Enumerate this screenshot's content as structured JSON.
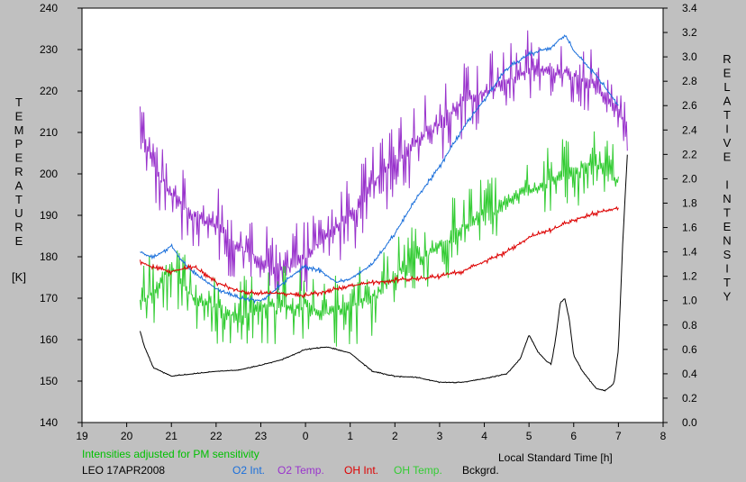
{
  "chart_data": {
    "type": "line",
    "x_ticks": [
      "19",
      "20",
      "21",
      "22",
      "23",
      "0",
      "1",
      "2",
      "3",
      "4",
      "5",
      "6",
      "7",
      "8"
    ],
    "x_range_hours": [
      19,
      32
    ],
    "x_label": "Local Standard Time [h]",
    "y_left": {
      "label_letters": [
        "T",
        "E",
        "M",
        "P",
        "E",
        "R",
        "A",
        "T",
        "U",
        "R",
        "E"
      ],
      "unit": "[K]",
      "ticks": [
        140,
        150,
        160,
        170,
        180,
        190,
        200,
        210,
        220,
        230,
        240
      ],
      "range": [
        140,
        240
      ]
    },
    "y_right": {
      "label_letters": [
        "R",
        "E",
        "L",
        "A",
        "T",
        "I",
        "V",
        "E",
        " ",
        "I",
        "N",
        "T",
        "E",
        "N",
        "S",
        "I",
        "T",
        "Y"
      ],
      "ticks": [
        "0.0",
        "0.2",
        "0.4",
        "0.6",
        "0.8",
        "1.0",
        "1.2",
        "1.4",
        "1.6",
        "1.8",
        "2.0",
        "2.2",
        "2.4",
        "2.6",
        "2.8",
        "3.0",
        "3.2",
        "3.4"
      ],
      "range": [
        0,
        3.4
      ]
    },
    "series": [
      {
        "name": "O2 Temp.",
        "axis": "left",
        "color": "#9933cc",
        "noise": 11,
        "x": [
          20.3,
          20.6,
          21.0,
          21.5,
          22.0,
          22.5,
          23.0,
          23.5,
          24.0,
          24.5,
          25.0,
          25.5,
          26.0,
          26.5,
          27.0,
          27.5,
          28.0,
          28.5,
          29.0,
          29.5,
          30.0,
          30.5,
          31.0,
          31.2
        ],
        "y": [
          212,
          202,
          195,
          190,
          187,
          183,
          178,
          176,
          180,
          185,
          190,
          198,
          203,
          208,
          212,
          218,
          220,
          222,
          225,
          225,
          224,
          221,
          215,
          212
        ]
      },
      {
        "name": "OH Temp.",
        "axis": "left",
        "color": "#33cc33",
        "noise": 11,
        "x": [
          20.3,
          20.6,
          21.0,
          21.5,
          22.0,
          22.5,
          23.0,
          23.5,
          24.0,
          24.5,
          25.0,
          25.5,
          26.0,
          26.5,
          27.0,
          27.5,
          28.0,
          28.5,
          29.0,
          29.5,
          30.0,
          30.5,
          31.0
        ],
        "y": [
          168,
          172,
          178,
          170,
          168,
          165,
          168,
          168,
          168,
          166,
          168,
          170,
          175,
          179,
          183,
          187,
          190,
          193,
          196,
          198,
          201,
          203,
          198
        ]
      },
      {
        "name": "O2 Int.",
        "axis": "right",
        "color": "#1a6fdb",
        "noise": 0.025,
        "x": [
          20.3,
          20.6,
          21.0,
          21.3,
          21.6,
          22.0,
          22.5,
          23.0,
          23.3,
          23.6,
          24.0,
          24.3,
          24.7,
          25.0,
          25.5,
          26.0,
          26.5,
          27.0,
          27.5,
          28.0,
          28.5,
          29.0,
          29.5,
          29.8,
          30.0,
          30.5,
          31.0
        ],
        "y": [
          1.4,
          1.35,
          1.45,
          1.3,
          1.2,
          1.1,
          1.02,
          1.0,
          1.08,
          1.18,
          1.28,
          1.25,
          1.15,
          1.18,
          1.3,
          1.55,
          1.85,
          2.1,
          2.4,
          2.65,
          2.9,
          3.02,
          3.08,
          3.18,
          3.05,
          2.85,
          2.6
        ]
      },
      {
        "name": "OH Int.",
        "axis": "right",
        "color": "#dd0000",
        "noise": 0.025,
        "x": [
          20.3,
          20.6,
          21.0,
          21.5,
          22.0,
          22.5,
          23.0,
          23.5,
          24.0,
          24.5,
          25.0,
          25.5,
          26.0,
          26.5,
          27.0,
          27.5,
          28.0,
          28.5,
          29.0,
          29.5,
          30.0,
          30.5,
          31.0
        ],
        "y": [
          1.32,
          1.27,
          1.24,
          1.28,
          1.15,
          1.08,
          1.06,
          1.06,
          1.04,
          1.08,
          1.12,
          1.15,
          1.17,
          1.18,
          1.2,
          1.24,
          1.32,
          1.4,
          1.52,
          1.58,
          1.66,
          1.72,
          1.76
        ]
      },
      {
        "name": "Bckgrd.",
        "axis": "right",
        "color": "#000000",
        "noise": 0.006,
        "x": [
          20.3,
          20.4,
          20.6,
          21.0,
          21.5,
          22.0,
          22.5,
          23.0,
          23.5,
          24.0,
          24.5,
          25.0,
          25.5,
          26.0,
          26.5,
          27.0,
          27.5,
          28.0,
          28.5,
          28.8,
          29.0,
          29.2,
          29.4,
          29.5,
          29.6,
          29.7,
          29.8,
          29.9,
          30.0,
          30.2,
          30.5,
          30.7,
          30.9,
          31.0,
          31.1,
          31.2
        ],
        "y": [
          0.75,
          0.62,
          0.45,
          0.38,
          0.4,
          0.42,
          0.43,
          0.47,
          0.52,
          0.6,
          0.62,
          0.57,
          0.42,
          0.38,
          0.37,
          0.33,
          0.33,
          0.36,
          0.4,
          0.52,
          0.72,
          0.58,
          0.5,
          0.48,
          0.7,
          0.98,
          1.02,
          0.85,
          0.55,
          0.42,
          0.28,
          0.26,
          0.32,
          0.6,
          1.5,
          2.2
        ]
      }
    ]
  },
  "annotations": {
    "note": "Intensities adjusted for PM sensitivity",
    "station": "LEO 17APR2008"
  },
  "legend": [
    {
      "label": "O2 Int.",
      "color": "#1a6fdb"
    },
    {
      "label": "O2 Temp.",
      "color": "#9933cc"
    },
    {
      "label": "OH Int.",
      "color": "#dd0000"
    },
    {
      "label": "OH Temp.",
      "color": "#33cc33"
    },
    {
      "label": "Bckgrd.",
      "color": "#000000"
    }
  ]
}
